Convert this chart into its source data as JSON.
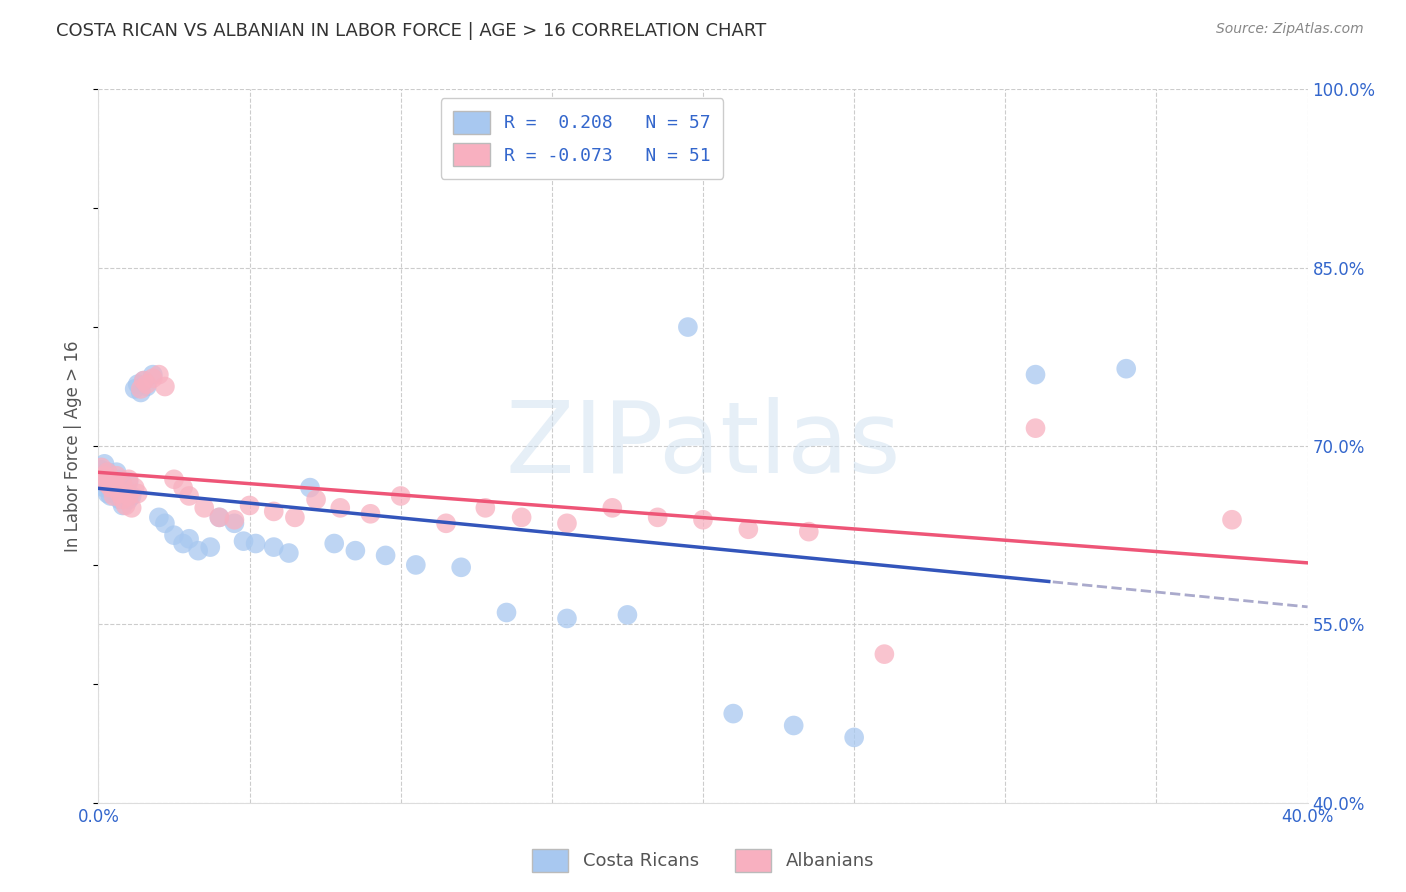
{
  "title": "COSTA RICAN VS ALBANIAN IN LABOR FORCE | AGE > 16 CORRELATION CHART",
  "source": "Source: ZipAtlas.com",
  "ylabel": "In Labor Force | Age > 16",
  "xlim": [
    0.0,
    0.4
  ],
  "ylim": [
    0.4,
    1.0
  ],
  "xticks": [
    0.0,
    0.05,
    0.1,
    0.15,
    0.2,
    0.25,
    0.3,
    0.35,
    0.4
  ],
  "xtick_labels": [
    "0.0%",
    "",
    "",
    "",
    "",
    "",
    "",
    "",
    "40.0%"
  ],
  "ytick_labels": [
    "40.0%",
    "55.0%",
    "70.0%",
    "85.0%",
    "100.0%"
  ],
  "yticks": [
    0.4,
    0.55,
    0.7,
    0.85,
    1.0
  ],
  "blue_color": "#A8C8F0",
  "pink_color": "#F8B0C0",
  "blue_line_color": "#3355BB",
  "pink_line_color": "#EE5577",
  "dot_size": 200,
  "background_color": "#FFFFFF",
  "watermark": "ZIPatlas",
  "blue_scatter_x": [
    0.001,
    0.001,
    0.002,
    0.002,
    0.002,
    0.003,
    0.003,
    0.003,
    0.004,
    0.004,
    0.004,
    0.005,
    0.005,
    0.006,
    0.006,
    0.007,
    0.007,
    0.008,
    0.008,
    0.009,
    0.01,
    0.01,
    0.011,
    0.012,
    0.013,
    0.014,
    0.015,
    0.016,
    0.018,
    0.02,
    0.022,
    0.025,
    0.028,
    0.03,
    0.033,
    0.037,
    0.04,
    0.045,
    0.048,
    0.052,
    0.058,
    0.063,
    0.07,
    0.078,
    0.085,
    0.095,
    0.105,
    0.12,
    0.135,
    0.155,
    0.175,
    0.195,
    0.21,
    0.23,
    0.25,
    0.31,
    0.34
  ],
  "blue_scatter_y": [
    0.68,
    0.675,
    0.67,
    0.665,
    0.685,
    0.672,
    0.66,
    0.678,
    0.668,
    0.673,
    0.658,
    0.665,
    0.671,
    0.66,
    0.678,
    0.655,
    0.672,
    0.668,
    0.65,
    0.663,
    0.655,
    0.67,
    0.658,
    0.748,
    0.752,
    0.745,
    0.755,
    0.75,
    0.76,
    0.64,
    0.635,
    0.625,
    0.618,
    0.622,
    0.612,
    0.615,
    0.64,
    0.635,
    0.62,
    0.618,
    0.615,
    0.61,
    0.665,
    0.618,
    0.612,
    0.608,
    0.6,
    0.598,
    0.56,
    0.555,
    0.558,
    0.8,
    0.475,
    0.465,
    0.455,
    0.76,
    0.765
  ],
  "pink_scatter_x": [
    0.001,
    0.002,
    0.002,
    0.003,
    0.003,
    0.004,
    0.004,
    0.005,
    0.005,
    0.006,
    0.006,
    0.007,
    0.008,
    0.008,
    0.009,
    0.01,
    0.01,
    0.011,
    0.012,
    0.013,
    0.014,
    0.015,
    0.016,
    0.018,
    0.02,
    0.022,
    0.025,
    0.028,
    0.03,
    0.035,
    0.04,
    0.045,
    0.05,
    0.058,
    0.065,
    0.072,
    0.08,
    0.09,
    0.1,
    0.115,
    0.128,
    0.14,
    0.155,
    0.17,
    0.185,
    0.2,
    0.215,
    0.235,
    0.26,
    0.31,
    0.375
  ],
  "pink_scatter_y": [
    0.682,
    0.675,
    0.67,
    0.668,
    0.678,
    0.665,
    0.672,
    0.67,
    0.658,
    0.665,
    0.675,
    0.66,
    0.655,
    0.668,
    0.65,
    0.658,
    0.672,
    0.648,
    0.665,
    0.66,
    0.748,
    0.755,
    0.752,
    0.757,
    0.76,
    0.75,
    0.672,
    0.665,
    0.658,
    0.648,
    0.64,
    0.638,
    0.65,
    0.645,
    0.64,
    0.655,
    0.648,
    0.643,
    0.658,
    0.635,
    0.648,
    0.64,
    0.635,
    0.648,
    0.64,
    0.638,
    0.63,
    0.628,
    0.525,
    0.715,
    0.638
  ]
}
